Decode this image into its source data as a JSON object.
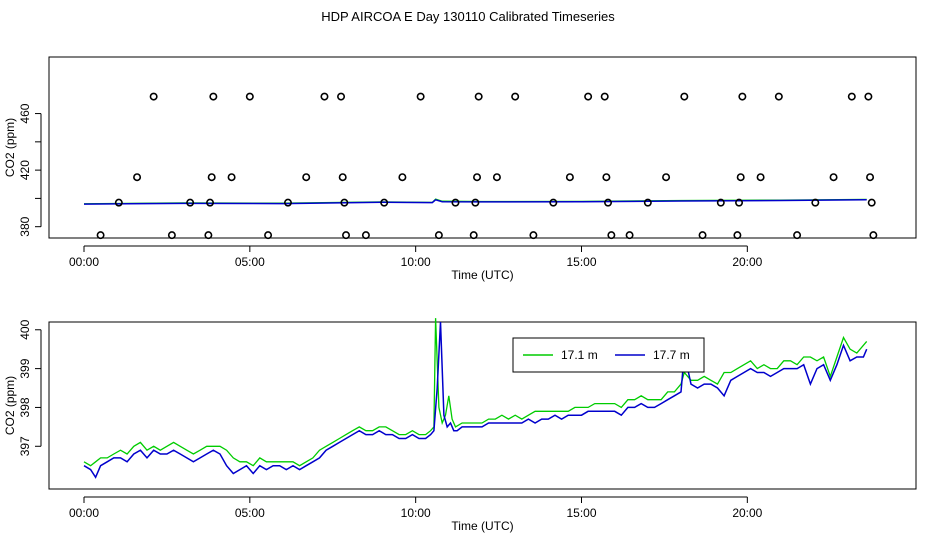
{
  "title": "HDP AIRCOA E  Day 130110  Calibrated Timeseries",
  "chart_data": [
    {
      "type": "scatter",
      "xlabel": "Time (UTC)",
      "ylabel": "CO2 (ppm)",
      "xlim": [
        0,
        24
      ],
      "ylim": [
        372,
        500
      ],
      "x_ticks": [
        0,
        5,
        10,
        15,
        20
      ],
      "x_tick_labels": [
        "00:00",
        "05:00",
        "10:00",
        "15:00",
        "20:00"
      ],
      "y_ticks": [
        380,
        420,
        460
      ],
      "y_tick_labels": [
        "380",
        "420",
        "460"
      ],
      "minor_y_ticks": [
        380,
        400,
        420,
        440,
        460
      ],
      "calibration_points": [
        {
          "x": 0.5,
          "y": 374
        },
        {
          "x": 1.05,
          "y": 397
        },
        {
          "x": 1.6,
          "y": 415
        },
        {
          "x": 2.1,
          "y": 472
        },
        {
          "x": 2.65,
          "y": 374
        },
        {
          "x": 3.2,
          "y": 397
        },
        {
          "x": 3.75,
          "y": 374
        },
        {
          "x": 3.8,
          "y": 397
        },
        {
          "x": 3.85,
          "y": 415
        },
        {
          "x": 3.9,
          "y": 472
        },
        {
          "x": 4.45,
          "y": 415
        },
        {
          "x": 5.0,
          "y": 472
        },
        {
          "x": 5.55,
          "y": 374
        },
        {
          "x": 6.15,
          "y": 397
        },
        {
          "x": 6.7,
          "y": 415
        },
        {
          "x": 7.25,
          "y": 472
        },
        {
          "x": 7.75,
          "y": 472
        },
        {
          "x": 7.8,
          "y": 415
        },
        {
          "x": 7.85,
          "y": 397
        },
        {
          "x": 7.9,
          "y": 374
        },
        {
          "x": 8.5,
          "y": 374
        },
        {
          "x": 9.05,
          "y": 397
        },
        {
          "x": 9.6,
          "y": 415
        },
        {
          "x": 10.15,
          "y": 472
        },
        {
          "x": 10.7,
          "y": 374
        },
        {
          "x": 11.2,
          "y": 397
        },
        {
          "x": 11.75,
          "y": 374
        },
        {
          "x": 11.8,
          "y": 397
        },
        {
          "x": 11.85,
          "y": 415
        },
        {
          "x": 11.9,
          "y": 472
        },
        {
          "x": 12.45,
          "y": 415
        },
        {
          "x": 13.0,
          "y": 472
        },
        {
          "x": 13.55,
          "y": 374
        },
        {
          "x": 14.15,
          "y": 397
        },
        {
          "x": 14.65,
          "y": 415
        },
        {
          "x": 15.2,
          "y": 472
        },
        {
          "x": 15.7,
          "y": 472
        },
        {
          "x": 15.75,
          "y": 415
        },
        {
          "x": 15.8,
          "y": 397
        },
        {
          "x": 15.9,
          "y": 374
        },
        {
          "x": 16.45,
          "y": 374
        },
        {
          "x": 17.0,
          "y": 397
        },
        {
          "x": 17.55,
          "y": 415
        },
        {
          "x": 18.1,
          "y": 472
        },
        {
          "x": 18.65,
          "y": 374
        },
        {
          "x": 19.2,
          "y": 397
        },
        {
          "x": 19.7,
          "y": 374
        },
        {
          "x": 19.75,
          "y": 397
        },
        {
          "x": 19.8,
          "y": 415
        },
        {
          "x": 19.85,
          "y": 472
        },
        {
          "x": 20.4,
          "y": 415
        },
        {
          "x": 20.95,
          "y": 472
        },
        {
          "x": 21.5,
          "y": 374
        },
        {
          "x": 22.05,
          "y": 397
        },
        {
          "x": 22.6,
          "y": 415
        },
        {
          "x": 23.15,
          "y": 472
        },
        {
          "x": 23.65,
          "y": 472
        },
        {
          "x": 23.7,
          "y": 415
        },
        {
          "x": 23.75,
          "y": 397
        },
        {
          "x": 23.8,
          "y": 374
        }
      ],
      "series": [
        {
          "color": "#00cc00",
          "x": [
            0,
            3,
            6,
            9,
            10.5,
            10.6,
            10.8,
            12,
            15,
            18,
            21,
            23.6
          ],
          "y": [
            396.2,
            396.8,
            396.6,
            397.5,
            397.2,
            399.5,
            398.0,
            397.8,
            397.9,
            398.5,
            398.8,
            399.3
          ]
        },
        {
          "color": "#0000cc",
          "x": [
            0,
            3,
            6,
            9,
            10.5,
            10.6,
            10.8,
            12,
            15,
            18,
            21,
            23.6
          ],
          "y": [
            396.0,
            396.5,
            396.3,
            397.3,
            397.0,
            399.0,
            397.7,
            397.5,
            397.6,
            398.2,
            398.5,
            399.0
          ]
        }
      ]
    },
    {
      "type": "line",
      "xlabel": "Time (UTC)",
      "ylabel": "CO2 (ppm)",
      "xlim": [
        0,
        24
      ],
      "ylim": [
        395.9,
        400.2
      ],
      "x_ticks": [
        0,
        5,
        10,
        15,
        20
      ],
      "x_tick_labels": [
        "00:00",
        "05:00",
        "10:00",
        "15:00",
        "20:00"
      ],
      "y_ticks": [
        397,
        398,
        399,
        400
      ],
      "y_tick_labels": [
        "397",
        "398",
        "399",
        "400"
      ],
      "legend": {
        "placement": "top-right"
      },
      "series": [
        {
          "name": "17.1 m",
          "color": "#00cc00",
          "x": [
            0.0,
            0.2,
            0.35,
            0.5,
            0.7,
            0.9,
            1.1,
            1.3,
            1.5,
            1.7,
            1.9,
            2.1,
            2.3,
            2.5,
            2.7,
            2.9,
            3.1,
            3.3,
            3.5,
            3.7,
            3.9,
            4.1,
            4.3,
            4.5,
            4.7,
            4.9,
            5.1,
            5.3,
            5.5,
            5.7,
            5.9,
            6.1,
            6.3,
            6.5,
            6.7,
            6.9,
            7.1,
            7.3,
            7.5,
            7.7,
            7.9,
            8.1,
            8.3,
            8.5,
            8.7,
            8.9,
            9.1,
            9.3,
            9.5,
            9.7,
            9.9,
            10.1,
            10.3,
            10.45,
            10.55,
            10.6,
            10.7,
            10.8,
            10.9,
            11.0,
            11.1,
            11.2,
            11.4,
            11.6,
            11.8,
            12.0,
            12.2,
            12.4,
            12.6,
            12.8,
            13.0,
            13.2,
            13.4,
            13.6,
            13.8,
            14.0,
            14.2,
            14.4,
            14.6,
            14.8,
            15.0,
            15.2,
            15.4,
            15.6,
            15.8,
            16.0,
            16.2,
            16.4,
            16.6,
            16.8,
            17.0,
            17.2,
            17.4,
            17.6,
            17.8,
            18.0,
            18.1,
            18.3,
            18.5,
            18.7,
            18.9,
            19.1,
            19.3,
            19.5,
            19.7,
            19.9,
            20.1,
            20.3,
            20.5,
            20.7,
            20.9,
            21.1,
            21.3,
            21.5,
            21.7,
            21.9,
            22.1,
            22.3,
            22.5,
            22.7,
            22.9,
            23.1,
            23.3,
            23.5,
            23.6
          ],
          "y": [
            396.6,
            396.5,
            396.6,
            396.7,
            396.7,
            396.8,
            396.9,
            396.8,
            397.0,
            397.1,
            396.9,
            397.0,
            396.9,
            397.0,
            397.1,
            397.0,
            396.9,
            396.8,
            396.9,
            397.0,
            397.0,
            397.0,
            396.9,
            396.7,
            396.6,
            396.6,
            396.5,
            396.7,
            396.6,
            396.6,
            396.6,
            396.6,
            396.6,
            396.5,
            396.6,
            396.7,
            396.9,
            397.0,
            397.1,
            397.2,
            397.3,
            397.4,
            397.5,
            397.4,
            397.4,
            397.5,
            397.5,
            397.4,
            397.3,
            397.3,
            397.4,
            397.3,
            397.3,
            397.4,
            397.5,
            400.3,
            398.0,
            397.6,
            397.8,
            398.3,
            397.7,
            397.5,
            397.6,
            397.6,
            397.6,
            397.6,
            397.7,
            397.7,
            397.8,
            397.7,
            397.8,
            397.7,
            397.8,
            397.9,
            397.9,
            397.9,
            397.9,
            397.9,
            397.9,
            398.0,
            398.0,
            398.0,
            398.1,
            398.1,
            398.1,
            398.1,
            398.0,
            398.2,
            398.2,
            398.3,
            398.2,
            398.2,
            398.2,
            398.4,
            398.4,
            398.6,
            398.9,
            398.7,
            398.7,
            398.8,
            398.7,
            398.6,
            398.9,
            398.9,
            399.0,
            399.1,
            399.2,
            399.0,
            399.1,
            399.0,
            399.0,
            399.2,
            399.2,
            399.1,
            399.3,
            399.3,
            399.2,
            399.3,
            398.8,
            399.3,
            399.8,
            399.5,
            399.4,
            399.6,
            399.7
          ]
        },
        {
          "name": "17.7 m",
          "color": "#0000cc",
          "x": [
            0.0,
            0.2,
            0.35,
            0.5,
            0.7,
            0.9,
            1.1,
            1.3,
            1.5,
            1.7,
            1.9,
            2.1,
            2.3,
            2.5,
            2.7,
            2.9,
            3.1,
            3.3,
            3.5,
            3.7,
            3.9,
            4.1,
            4.3,
            4.5,
            4.7,
            4.9,
            5.1,
            5.3,
            5.5,
            5.7,
            5.9,
            6.1,
            6.3,
            6.5,
            6.7,
            6.9,
            7.1,
            7.3,
            7.5,
            7.7,
            7.9,
            8.1,
            8.3,
            8.5,
            8.7,
            8.9,
            9.1,
            9.3,
            9.5,
            9.7,
            9.9,
            10.1,
            10.3,
            10.45,
            10.55,
            10.65,
            10.75,
            10.85,
            10.95,
            11.05,
            11.15,
            11.25,
            11.4,
            11.6,
            11.8,
            12.0,
            12.2,
            12.4,
            12.6,
            12.8,
            13.0,
            13.2,
            13.4,
            13.6,
            13.8,
            14.0,
            14.2,
            14.4,
            14.6,
            14.8,
            15.0,
            15.2,
            15.4,
            15.6,
            15.8,
            16.0,
            16.2,
            16.4,
            16.6,
            16.8,
            17.0,
            17.2,
            17.4,
            17.6,
            17.8,
            18.0,
            18.1,
            18.3,
            18.5,
            18.7,
            18.9,
            19.1,
            19.3,
            19.5,
            19.7,
            19.9,
            20.1,
            20.3,
            20.5,
            20.7,
            20.9,
            21.1,
            21.3,
            21.5,
            21.7,
            21.9,
            22.1,
            22.3,
            22.5,
            22.7,
            22.9,
            23.1,
            23.3,
            23.5,
            23.6
          ],
          "y": [
            396.5,
            396.4,
            396.2,
            396.5,
            396.6,
            396.7,
            396.7,
            396.6,
            396.8,
            396.9,
            396.7,
            396.9,
            396.8,
            396.8,
            396.9,
            396.8,
            396.7,
            396.6,
            396.7,
            396.8,
            396.9,
            396.8,
            396.5,
            396.3,
            396.4,
            396.5,
            396.3,
            396.5,
            396.4,
            396.5,
            396.5,
            396.4,
            396.5,
            396.4,
            396.5,
            396.6,
            396.7,
            396.9,
            397.0,
            397.1,
            397.2,
            397.3,
            397.4,
            397.3,
            397.3,
            397.4,
            397.3,
            397.3,
            397.2,
            397.2,
            397.3,
            397.2,
            397.2,
            397.3,
            397.4,
            398.5,
            400.2,
            397.8,
            397.5,
            397.6,
            397.4,
            397.4,
            397.5,
            397.5,
            397.5,
            397.5,
            397.6,
            397.6,
            397.6,
            397.6,
            397.6,
            397.6,
            397.7,
            397.6,
            397.7,
            397.7,
            397.8,
            397.7,
            397.8,
            397.8,
            397.8,
            397.9,
            397.9,
            397.9,
            397.9,
            397.9,
            397.8,
            398.0,
            398.0,
            398.1,
            398.0,
            398.0,
            398.1,
            398.2,
            398.3,
            398.4,
            399.4,
            398.6,
            398.5,
            398.6,
            398.6,
            398.5,
            398.3,
            398.7,
            398.8,
            398.9,
            399.0,
            398.9,
            398.9,
            398.8,
            398.9,
            399.0,
            399.0,
            399.0,
            399.1,
            398.6,
            399.0,
            399.1,
            398.7,
            399.1,
            399.6,
            399.2,
            399.3,
            399.3,
            399.5
          ]
        }
      ]
    }
  ]
}
